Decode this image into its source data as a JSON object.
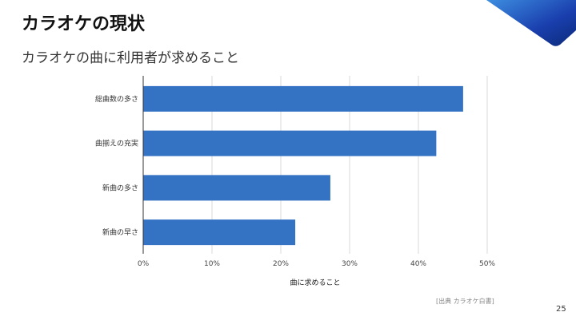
{
  "slide": {
    "title": "カラオケの現状",
    "subtitle": "カラオケの曲に利用者が求めること",
    "source": "[出典 カラオケ白書]",
    "page_number": "25",
    "accent_color": "#3472c4"
  },
  "chart_data": {
    "type": "bar",
    "orientation": "horizontal",
    "categories": [
      "総曲数の多さ",
      "曲揃えの充実",
      "新曲の多さ",
      "新曲の早さ"
    ],
    "values": [
      46.5,
      42.6,
      27.2,
      22.1
    ],
    "unit": "%",
    "xlabel": "曲に求めること",
    "ylabel": "",
    "xlim": [
      0,
      50
    ],
    "xticks": [
      "0%",
      "10%",
      "20%",
      "30%",
      "40%",
      "50%"
    ],
    "grid": true,
    "bar_color": "#3472c4"
  }
}
